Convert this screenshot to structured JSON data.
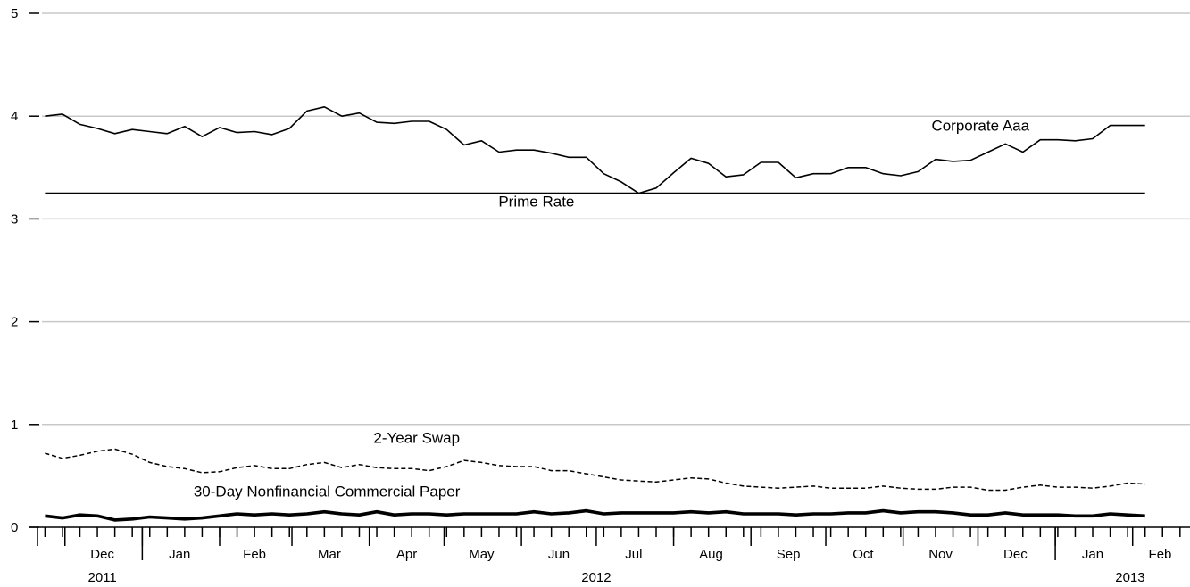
{
  "chart_data": {
    "type": "line",
    "title": "",
    "xlabel": "",
    "ylabel": "",
    "ylim": [
      0,
      5
    ],
    "yticks": [
      "0",
      "1",
      "2",
      "3",
      "4",
      "5"
    ],
    "grid": true,
    "x_range": [
      "2011-11-20",
      "2013-02-24"
    ],
    "month_labels": [
      {
        "label": "Dec",
        "date": "2011-12-16"
      },
      {
        "label": "Jan",
        "date": "2012-01-16"
      },
      {
        "label": "Feb",
        "date": "2012-02-15"
      },
      {
        "label": "Mar",
        "date": "2012-03-16"
      },
      {
        "label": "Apr",
        "date": "2012-04-16"
      },
      {
        "label": "May",
        "date": "2012-05-16"
      },
      {
        "label": "Jun",
        "date": "2012-06-16"
      },
      {
        "label": "Jul",
        "date": "2012-07-16"
      },
      {
        "label": "Aug",
        "date": "2012-08-16"
      },
      {
        "label": "Sep",
        "date": "2012-09-16"
      },
      {
        "label": "Oct",
        "date": "2012-10-16"
      },
      {
        "label": "Nov",
        "date": "2012-11-16"
      },
      {
        "label": "Dec",
        "date": "2012-12-16"
      },
      {
        "label": "Jan",
        "date": "2013-01-16"
      },
      {
        "label": "Feb",
        "date": "2013-02-12"
      }
    ],
    "year_labels": [
      {
        "label": "2011",
        "date": "2011-12-16"
      },
      {
        "label": "2012",
        "date": "2012-07-01"
      },
      {
        "label": "2013",
        "date": "2013-01-31"
      }
    ],
    "month_boundaries": [
      "2011-12-01",
      "2012-01-01",
      "2012-02-01",
      "2012-03-01",
      "2012-04-01",
      "2012-05-01",
      "2012-06-01",
      "2012-07-01",
      "2012-08-01",
      "2012-09-01",
      "2012-10-01",
      "2012-11-01",
      "2012-12-01",
      "2013-01-01",
      "2013-02-01"
    ],
    "year_boundaries": [
      "2012-01-01",
      "2013-01-01"
    ],
    "week_ticks_start": "2011-11-23",
    "week_ticks_count": 66,
    "series": [
      {
        "name": "Corporate Aaa",
        "style": "solid",
        "x": [
          "2011-11-23",
          "2011-11-30",
          "2011-12-07",
          "2011-12-14",
          "2011-12-21",
          "2011-12-28",
          "2012-01-04",
          "2012-01-11",
          "2012-01-18",
          "2012-01-25",
          "2012-02-01",
          "2012-02-08",
          "2012-02-15",
          "2012-02-22",
          "2012-02-29",
          "2012-03-07",
          "2012-03-14",
          "2012-03-21",
          "2012-03-28",
          "2012-04-04",
          "2012-04-11",
          "2012-04-18",
          "2012-04-25",
          "2012-05-02",
          "2012-05-09",
          "2012-05-16",
          "2012-05-23",
          "2012-05-30",
          "2012-06-06",
          "2012-06-13",
          "2012-06-20",
          "2012-06-27",
          "2012-07-04",
          "2012-07-11",
          "2012-07-18",
          "2012-07-25",
          "2012-08-01",
          "2012-08-08",
          "2012-08-15",
          "2012-08-22",
          "2012-08-29",
          "2012-09-05",
          "2012-09-12",
          "2012-09-19",
          "2012-09-26",
          "2012-10-03",
          "2012-10-10",
          "2012-10-17",
          "2012-10-24",
          "2012-10-31",
          "2012-11-07",
          "2012-11-14",
          "2012-11-21",
          "2012-11-28",
          "2012-12-05",
          "2012-12-12",
          "2012-12-19",
          "2012-12-26",
          "2013-01-02",
          "2013-01-09",
          "2013-01-16",
          "2013-01-23",
          "2013-01-30",
          "2013-02-06"
        ],
        "values": [
          4.0,
          4.02,
          3.92,
          3.88,
          3.83,
          3.87,
          3.85,
          3.83,
          3.9,
          3.8,
          3.89,
          3.84,
          3.85,
          3.82,
          3.88,
          4.05,
          4.09,
          4.0,
          4.03,
          3.94,
          3.93,
          3.95,
          3.95,
          3.87,
          3.72,
          3.76,
          3.65,
          3.67,
          3.67,
          3.64,
          3.6,
          3.6,
          3.44,
          3.36,
          3.25,
          3.3,
          3.45,
          3.59,
          3.54,
          3.41,
          3.43,
          3.55,
          3.55,
          3.4,
          3.44,
          3.44,
          3.5,
          3.5,
          3.44,
          3.42,
          3.46,
          3.58,
          3.56,
          3.57,
          3.65,
          3.73,
          3.65,
          3.77,
          3.77,
          3.76,
          3.78,
          3.91,
          3.91,
          3.91
        ]
      },
      {
        "name": "Prime Rate",
        "style": "solid",
        "x": [
          "2011-11-23",
          "2013-02-06"
        ],
        "values": [
          3.25,
          3.25
        ]
      },
      {
        "name": "2-Year Swap",
        "style": "dashed",
        "x": [
          "2011-11-23",
          "2011-11-30",
          "2011-12-07",
          "2011-12-14",
          "2011-12-21",
          "2011-12-28",
          "2012-01-04",
          "2012-01-11",
          "2012-01-18",
          "2012-01-25",
          "2012-02-01",
          "2012-02-08",
          "2012-02-15",
          "2012-02-22",
          "2012-02-29",
          "2012-03-07",
          "2012-03-14",
          "2012-03-21",
          "2012-03-28",
          "2012-04-04",
          "2012-04-11",
          "2012-04-18",
          "2012-04-25",
          "2012-05-02",
          "2012-05-09",
          "2012-05-16",
          "2012-05-23",
          "2012-05-30",
          "2012-06-06",
          "2012-06-13",
          "2012-06-20",
          "2012-06-27",
          "2012-07-04",
          "2012-07-11",
          "2012-07-18",
          "2012-07-25",
          "2012-08-01",
          "2012-08-08",
          "2012-08-15",
          "2012-08-22",
          "2012-08-29",
          "2012-09-05",
          "2012-09-12",
          "2012-09-19",
          "2012-09-26",
          "2012-10-03",
          "2012-10-10",
          "2012-10-17",
          "2012-10-24",
          "2012-10-31",
          "2012-11-07",
          "2012-11-14",
          "2012-11-21",
          "2012-11-28",
          "2012-12-05",
          "2012-12-12",
          "2012-12-19",
          "2012-12-26",
          "2013-01-02",
          "2013-01-09",
          "2013-01-16",
          "2013-01-23",
          "2013-01-30",
          "2013-02-06"
        ],
        "values": [
          0.72,
          0.67,
          0.7,
          0.74,
          0.76,
          0.71,
          0.63,
          0.59,
          0.57,
          0.53,
          0.54,
          0.58,
          0.6,
          0.57,
          0.57,
          0.61,
          0.63,
          0.58,
          0.61,
          0.58,
          0.57,
          0.57,
          0.55,
          0.59,
          0.65,
          0.63,
          0.6,
          0.59,
          0.59,
          0.55,
          0.55,
          0.52,
          0.49,
          0.46,
          0.45,
          0.44,
          0.46,
          0.48,
          0.47,
          0.43,
          0.4,
          0.39,
          0.38,
          0.39,
          0.4,
          0.38,
          0.38,
          0.38,
          0.4,
          0.38,
          0.37,
          0.37,
          0.39,
          0.39,
          0.36,
          0.36,
          0.39,
          0.41,
          0.39,
          0.39,
          0.38,
          0.4,
          0.43,
          0.42
        ]
      },
      {
        "name": "30-Day Nonfinancial Commercial Paper",
        "style": "bold",
        "x": [
          "2011-11-23",
          "2011-11-30",
          "2011-12-07",
          "2011-12-14",
          "2011-12-21",
          "2011-12-28",
          "2012-01-04",
          "2012-01-11",
          "2012-01-18",
          "2012-01-25",
          "2012-02-01",
          "2012-02-08",
          "2012-02-15",
          "2012-02-22",
          "2012-02-29",
          "2012-03-07",
          "2012-03-14",
          "2012-03-21",
          "2012-03-28",
          "2012-04-04",
          "2012-04-11",
          "2012-04-18",
          "2012-04-25",
          "2012-05-02",
          "2012-05-09",
          "2012-05-16",
          "2012-05-23",
          "2012-05-30",
          "2012-06-06",
          "2012-06-13",
          "2012-06-20",
          "2012-06-27",
          "2012-07-04",
          "2012-07-11",
          "2012-07-18",
          "2012-07-25",
          "2012-08-01",
          "2012-08-08",
          "2012-08-15",
          "2012-08-22",
          "2012-08-29",
          "2012-09-05",
          "2012-09-12",
          "2012-09-19",
          "2012-09-26",
          "2012-10-03",
          "2012-10-10",
          "2012-10-17",
          "2012-10-24",
          "2012-10-31",
          "2012-11-07",
          "2012-11-14",
          "2012-11-21",
          "2012-11-28",
          "2012-12-05",
          "2012-12-12",
          "2012-12-19",
          "2012-12-26",
          "2013-01-02",
          "2013-01-09",
          "2013-01-16",
          "2013-01-23",
          "2013-01-30",
          "2013-02-06"
        ],
        "values": [
          0.11,
          0.09,
          0.12,
          0.11,
          0.07,
          0.08,
          0.1,
          0.09,
          0.08,
          0.09,
          0.11,
          0.13,
          0.12,
          0.13,
          0.12,
          0.13,
          0.15,
          0.13,
          0.12,
          0.15,
          0.12,
          0.13,
          0.13,
          0.12,
          0.13,
          0.13,
          0.13,
          0.13,
          0.15,
          0.13,
          0.14,
          0.16,
          0.13,
          0.14,
          0.14,
          0.14,
          0.14,
          0.15,
          0.14,
          0.15,
          0.13,
          0.13,
          0.13,
          0.12,
          0.13,
          0.13,
          0.14,
          0.14,
          0.16,
          0.14,
          0.15,
          0.15,
          0.14,
          0.12,
          0.12,
          0.14,
          0.12,
          0.12,
          0.12,
          0.11,
          0.11,
          0.13,
          0.12,
          0.11
        ]
      }
    ],
    "series_label_anchors": [
      {
        "series": 0,
        "date": "2012-12-02",
        "value": 3.86
      },
      {
        "series": 1,
        "date": "2012-06-07",
        "value": 3.12
      },
      {
        "series": 2,
        "date": "2012-04-20",
        "value": 0.82
      },
      {
        "series": 3,
        "date": "2012-03-15",
        "value": 0.3
      }
    ]
  }
}
